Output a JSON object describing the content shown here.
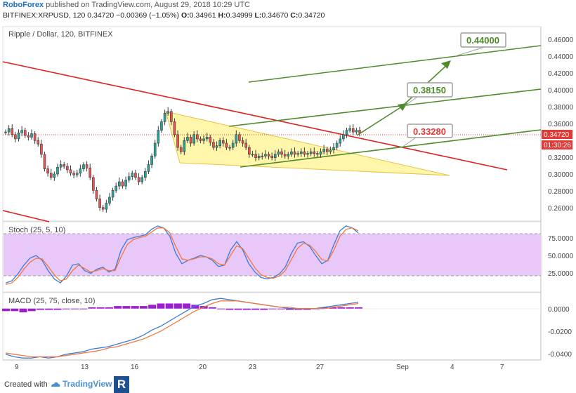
{
  "header": {
    "brand": "RoboForex",
    "published": "published on TradingView.com, August 29, 2018 10:29 UTC",
    "symbol": "BITFINEX:XRPUSD, 120",
    "price": "0.34720",
    "change": "−0.00369 (−1.05%)",
    "o_label": "O:",
    "o_value": "0.34961",
    "h_label": "H:",
    "h_value": "0.34999",
    "l_label": "L:",
    "l_value": "0.34670",
    "c_label": "C:",
    "c_value": "0.34720"
  },
  "footer": {
    "created_with": "Created with",
    "tv": "TradingView",
    "logo": "R"
  },
  "colors": {
    "bull": "#26a69a",
    "bear": "#ef5350",
    "candle": "#3a3a3a",
    "trend_red": "#e02020",
    "trend_green": "#4f8a2b",
    "triangle_fill": "#fff176",
    "stoch_fill": "#e8c8f8",
    "stoch_k": "#3d7bd8",
    "stoch_d": "#f07840",
    "macd_hist": "#9b1fd0",
    "macd_line": "#3d7bd8",
    "signal_line": "#f07840",
    "label_price_bg": "#e53935",
    "label_timer_bg": "#e53935"
  },
  "chart_data": [
    {
      "type": "candlestick",
      "title": "Ripple / Dollar, 120, BITFINEX",
      "ylim": [
        0.245,
        0.47
      ],
      "y_ticks": [
        "0.46000",
        "0.44000",
        "0.42000",
        "0.40000",
        "0.38000",
        "0.36000",
        "0.34720",
        "0.32000",
        "0.30000",
        "0.28000",
        "0.26000"
      ],
      "x_ticks": [
        "9",
        "13",
        "16",
        "20",
        "23",
        "27",
        "Sep",
        "4",
        "7"
      ],
      "last_price_label": "0.34720",
      "timer_label": "01:30:26",
      "annotations": [
        {
          "text": "0.44000",
          "value": 0.44
        },
        {
          "text": "0.38150",
          "value": 0.3815
        },
        {
          "text": "0.33280",
          "value": 0.3328
        }
      ],
      "close_series": [
        0.348,
        0.352,
        0.345,
        0.34,
        0.347,
        0.35,
        0.344,
        0.342,
        0.346,
        0.338,
        0.334,
        0.322,
        0.305,
        0.3,
        0.295,
        0.299,
        0.307,
        0.31,
        0.308,
        0.304,
        0.3,
        0.298,
        0.3,
        0.305,
        0.31,
        0.306,
        0.295,
        0.28,
        0.27,
        0.26,
        0.258,
        0.265,
        0.272,
        0.28,
        0.285,
        0.29,
        0.285,
        0.292,
        0.296,
        0.3,
        0.295,
        0.29,
        0.295,
        0.302,
        0.31,
        0.32,
        0.335,
        0.35,
        0.36,
        0.37,
        0.372,
        0.36,
        0.345,
        0.33,
        0.325,
        0.338,
        0.342,
        0.335,
        0.345,
        0.34,
        0.338,
        0.34,
        0.342,
        0.336,
        0.33,
        0.332,
        0.338,
        0.335,
        0.33,
        0.33,
        0.335,
        0.345,
        0.338,
        0.335,
        0.33,
        0.322,
        0.322,
        0.318,
        0.32,
        0.32,
        0.322,
        0.32,
        0.318,
        0.322,
        0.325,
        0.322,
        0.32,
        0.322,
        0.325,
        0.322,
        0.323,
        0.325,
        0.322,
        0.323,
        0.325,
        0.323,
        0.322,
        0.325,
        0.328,
        0.325,
        0.327,
        0.33,
        0.335,
        0.34,
        0.345,
        0.35,
        0.352,
        0.348,
        0.35,
        0.347
      ]
    },
    {
      "type": "line",
      "title": "Stoch (25, 5, 10)",
      "ylim": [
        0,
        100
      ],
      "y_ticks": [
        "75.0000",
        "50.0000",
        "25.0000"
      ],
      "bands": [
        20,
        80
      ],
      "series": [
        {
          "values": [
            12,
            15,
            25,
            38,
            48,
            52,
            45,
            30,
            18,
            12,
            22,
            38,
            40,
            30,
            26,
            32,
            35,
            28,
            32,
            60,
            75,
            78,
            80,
            82,
            90,
            95,
            92,
            80,
            55,
            40,
            45,
            48,
            52,
            50,
            45,
            36,
            38,
            60,
            72,
            60,
            40,
            28,
            20,
            18,
            20,
            25,
            35,
            55,
            70,
            72,
            65,
            52,
            40,
            45,
            68,
            88,
            95,
            92,
            85
          ]
        },
        {
          "values": [
            10,
            12,
            20,
            32,
            42,
            48,
            47,
            36,
            24,
            15,
            18,
            30,
            38,
            33,
            28,
            30,
            33,
            30,
            30,
            50,
            68,
            75,
            78,
            80,
            86,
            92,
            92,
            85,
            65,
            47,
            45,
            47,
            50,
            50,
            47,
            40,
            38,
            52,
            66,
            62,
            48,
            34,
            24,
            20,
            19,
            22,
            30,
            46,
            62,
            70,
            67,
            58,
            46,
            44,
            60,
            80,
            90,
            92,
            88
          ]
        }
      ]
    },
    {
      "type": "line",
      "title": "MACD (25, 75, close, 10)",
      "ylim": [
        -0.04,
        0.012
      ],
      "y_ticks": [
        "0.0000",
        "-0.0200",
        "-0.0400"
      ],
      "series": [
        {
          "values": [
            -0.036,
            -0.038,
            -0.039,
            -0.039,
            -0.038,
            -0.039,
            -0.038,
            -0.036,
            -0.035,
            -0.034,
            -0.032,
            -0.031,
            -0.03,
            -0.028,
            -0.026,
            -0.024,
            -0.021,
            -0.017,
            -0.014,
            -0.01,
            -0.006,
            -0.002,
            0.002,
            0.004,
            0.007,
            0.008,
            0.007,
            0.006,
            0.005,
            0.004,
            0.003,
            0.002,
            0.001,
            0.0,
            0.0,
            0.0,
            0.0,
            0.001,
            0.002,
            0.003,
            0.004,
            0.005
          ]
        },
        {
          "values": [
            -0.035,
            -0.036,
            -0.037,
            -0.038,
            -0.038,
            -0.038,
            -0.038,
            -0.037,
            -0.036,
            -0.035,
            -0.034,
            -0.033,
            -0.031,
            -0.03,
            -0.028,
            -0.026,
            -0.024,
            -0.021,
            -0.018,
            -0.014,
            -0.01,
            -0.006,
            -0.002,
            0.001,
            0.004,
            0.006,
            0.006,
            0.006,
            0.005,
            0.004,
            0.003,
            0.002,
            0.001,
            0.001,
            0.0,
            0.0,
            0.0,
            0.0,
            0.001,
            0.002,
            0.003,
            0.004
          ]
        },
        {
          "values": [
            -0.002,
            -0.002,
            -0.003,
            -0.002,
            -0.001,
            -0.001,
            -0.001,
            0.0,
            0.0,
            0.0,
            0.001,
            0.001,
            0.001,
            0.002,
            0.002,
            0.002,
            0.002,
            0.003,
            0.004,
            0.004,
            0.004,
            0.004,
            0.003,
            0.002,
            0.001,
            0.0,
            -0.001,
            -0.001,
            -0.001,
            -0.001,
            -0.001,
            0.0,
            0.0,
            -0.001,
            -0.001,
            -0.001,
            0.0,
            0.001,
            0.001,
            0.001,
            0.001,
            0.001
          ]
        }
      ]
    }
  ]
}
